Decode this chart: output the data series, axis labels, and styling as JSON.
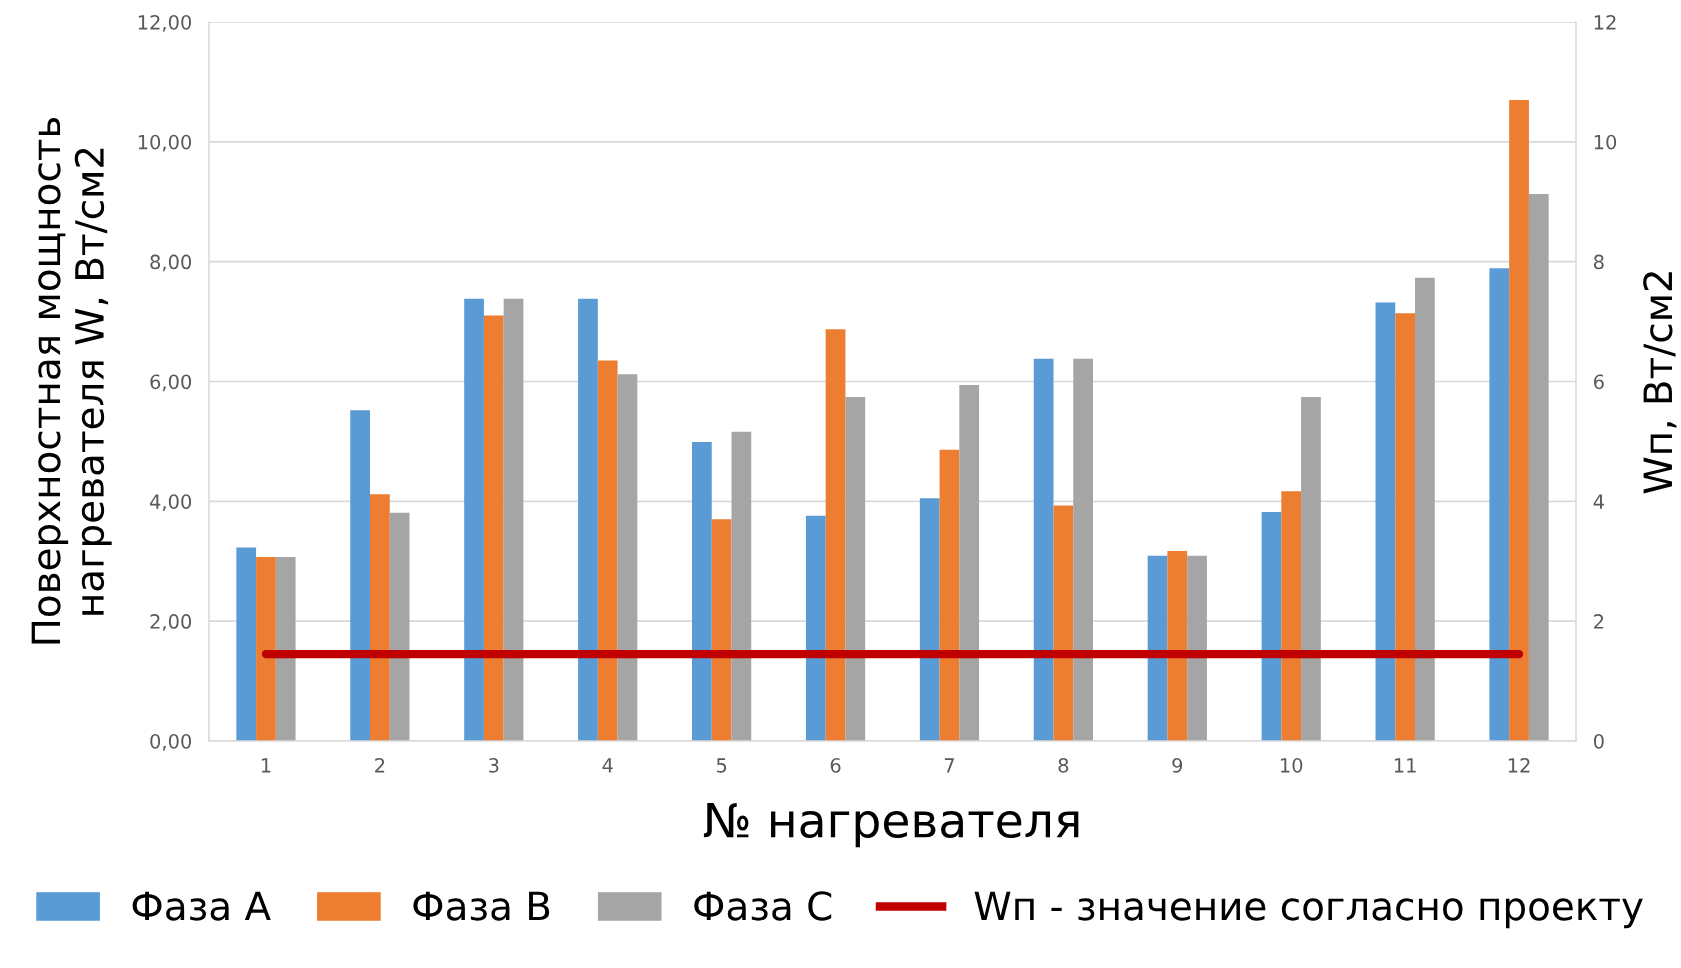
{
  "chart_data": {
    "type": "bar",
    "xlabel": "№ нагревателя",
    "ylabel": "Поверхностная мощность\nнагревателя W, Вт/см2",
    "y2label": "Wп, Вт/см2",
    "categories": [
      "1",
      "2",
      "3",
      "4",
      "5",
      "6",
      "7",
      "8",
      "9",
      "10",
      "11",
      "12"
    ],
    "series": [
      {
        "name": "Фаза А",
        "color": "#5b9bd5",
        "values": [
          3.23,
          5.52,
          7.38,
          7.38,
          4.99,
          3.76,
          4.05,
          6.38,
          3.09,
          3.82,
          7.32,
          7.89
        ]
      },
      {
        "name": "Фаза В",
        "color": "#ed7d31",
        "values": [
          3.07,
          4.12,
          7.1,
          6.35,
          3.7,
          6.87,
          4.86,
          3.93,
          3.17,
          4.17,
          7.14,
          10.7
        ]
      },
      {
        "name": "Фаза С",
        "color": "#a5a5a5",
        "values": [
          3.07,
          3.81,
          7.38,
          6.12,
          5.16,
          5.74,
          5.94,
          6.38,
          3.09,
          5.74,
          7.73,
          9.13
        ]
      },
      {
        "name": "Wп - значение согласно проекту",
        "color": "#c00000",
        "type": "line",
        "axis": "y2",
        "values": [
          1.45,
          1.45,
          1.45,
          1.45,
          1.45,
          1.45,
          1.45,
          1.45,
          1.45,
          1.45,
          1.45,
          1.45
        ]
      }
    ],
    "ylim": [
      0,
      12
    ],
    "yticks": [
      {
        "value": 0,
        "label": "0,00"
      },
      {
        "value": 2,
        "label": "2,00"
      },
      {
        "value": 4,
        "label": "4,00"
      },
      {
        "value": 6,
        "label": "6,00"
      },
      {
        "value": 8,
        "label": "8,00"
      },
      {
        "value": 10,
        "label": "10,00"
      },
      {
        "value": 12,
        "label": "12,00"
      }
    ],
    "y2lim": [
      0,
      12
    ],
    "y2ticks": [
      0,
      2,
      4,
      6,
      8,
      10,
      12
    ],
    "grid": "y",
    "legend": "bottom"
  }
}
